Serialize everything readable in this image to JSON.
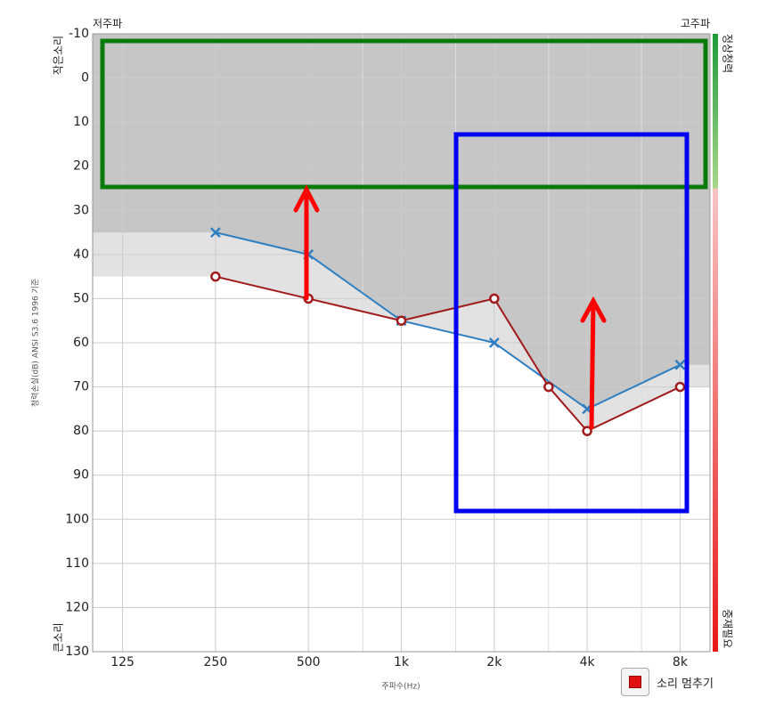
{
  "chart_data": {
    "type": "line",
    "top_left_label": "저주파",
    "top_right_label": "고주파",
    "y_top_label": "작은소리",
    "y_bottom_label": "큰소리",
    "ylabel": "청력손실(dB) ANSI S3.6 1996 기준",
    "xlabel": "주파수(Hz)",
    "colorbar_top_label": "정상청력",
    "colorbar_bottom_label": "중재필요",
    "xlog": true,
    "xlim": [
      100,
      10000
    ],
    "xticks": [
      125,
      250,
      500,
      {
        "value": 1000,
        "label": "1k"
      },
      {
        "value": 2000,
        "label": "2k"
      },
      {
        "value": 4000,
        "label": "4k"
      },
      {
        "value": 8000,
        "label": "8k"
      }
    ],
    "xminor": [
      750,
      1500,
      3000,
      6000
    ],
    "ylim": [
      -10,
      130
    ],
    "yinvert": true,
    "yticks": [
      -10,
      0,
      10,
      20,
      30,
      40,
      50,
      60,
      70,
      80,
      90,
      100,
      110,
      120,
      130
    ],
    "grid": true,
    "series": [
      {
        "color": "#2f7fc1",
        "marker": "x",
        "x": [
          250,
          500,
          1000,
          2000,
          4000,
          8000
        ],
        "values": [
          35,
          40,
          55,
          60,
          75,
          65
        ]
      },
      {
        "color": "#a01c1c",
        "marker": "o",
        "x": [
          250,
          500,
          1000,
          2000,
          3000,
          4000,
          8000
        ],
        "values": [
          45,
          50,
          55,
          50,
          70,
          80,
          70
        ]
      }
    ]
  },
  "button": {
    "label": "소리 멈추기"
  }
}
